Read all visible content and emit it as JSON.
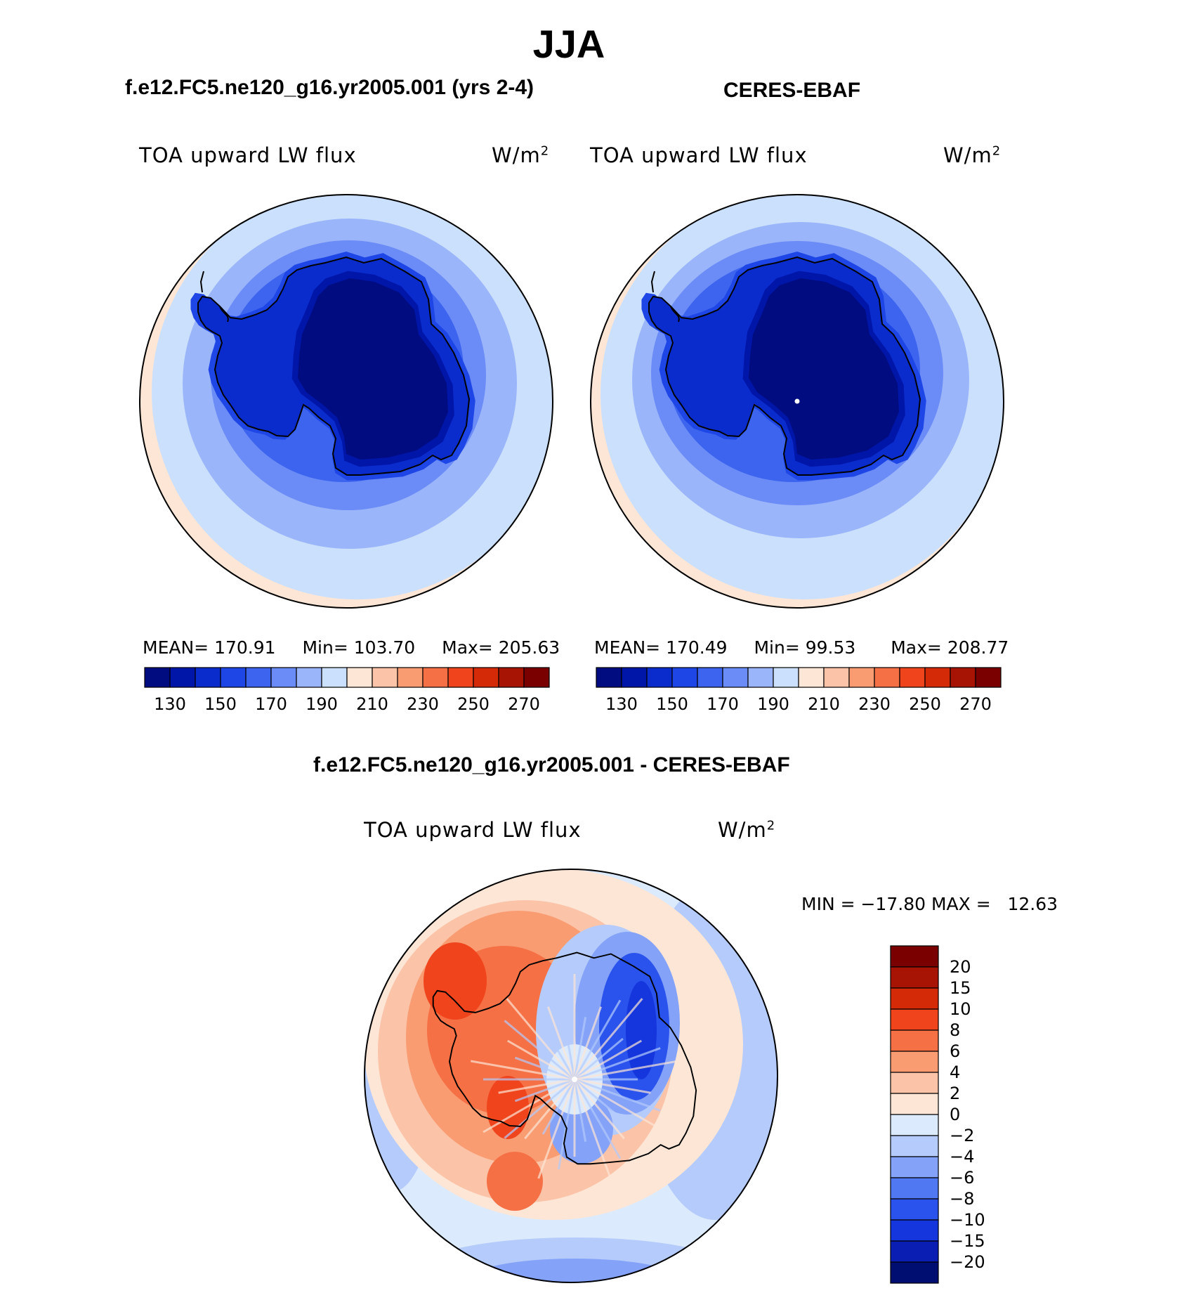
{
  "figure": {
    "title": "JJA"
  },
  "chart_data": [
    {
      "type": "heatmap",
      "panel": "model",
      "title": "f.e12.FC5.ne120_g16.yr2005.001 (yrs 2-4)",
      "variable": "TOA upward LW flux",
      "units": "W/m",
      "units_exp": "2",
      "projection": "south-polar-stereographic",
      "stats": {
        "mean_label": "MEAN=",
        "mean": "170.91",
        "min_label": "Min=",
        "min": "103.70",
        "max_label": "Max=",
        "max": "205.63"
      },
      "colorbar": {
        "orientation": "horizontal",
        "levels": [
          130,
          140,
          150,
          160,
          170,
          180,
          190,
          200,
          210,
          220,
          230,
          240,
          250,
          260,
          270
        ],
        "tick_labels": [
          "130",
          "150",
          "170",
          "190",
          "210",
          "230",
          "250",
          "270"
        ],
        "colors": [
          "#000c80",
          "#0016a8",
          "#0a2ccd",
          "#1e46e6",
          "#3c64ee",
          "#6b8cf6",
          "#9bb5fb",
          "#cbe0fd",
          "#fde6d6",
          "#fbc4a8",
          "#f99c72",
          "#f67046",
          "#f0441c",
          "#d42a08",
          "#a81404",
          "#7a0000"
        ]
      }
    },
    {
      "type": "heatmap",
      "panel": "observation",
      "title": "CERES-EBAF",
      "variable": "TOA upward LW flux",
      "units": "W/m",
      "units_exp": "2",
      "projection": "south-polar-stereographic",
      "stats": {
        "mean_label": "MEAN=",
        "mean": "170.49",
        "min_label": "Min=",
        "min": "99.53",
        "max_label": "Max=",
        "max": "208.77"
      },
      "colorbar": {
        "orientation": "horizontal",
        "levels": [
          130,
          140,
          150,
          160,
          170,
          180,
          190,
          200,
          210,
          220,
          230,
          240,
          250,
          260,
          270
        ],
        "tick_labels": [
          "130",
          "150",
          "170",
          "190",
          "210",
          "230",
          "250",
          "270"
        ],
        "colors": [
          "#000c80",
          "#0016a8",
          "#0a2ccd",
          "#1e46e6",
          "#3c64ee",
          "#6b8cf6",
          "#9bb5fb",
          "#cbe0fd",
          "#fde6d6",
          "#fbc4a8",
          "#f99c72",
          "#f67046",
          "#f0441c",
          "#d42a08",
          "#a81404",
          "#7a0000"
        ]
      }
    },
    {
      "type": "heatmap",
      "panel": "difference",
      "title": "f.e12.FC5.ne120_g16.yr2005.001 - CERES-EBAF",
      "variable": "TOA upward LW flux",
      "units": "W/m",
      "units_exp": "2",
      "projection": "south-polar-stereographic",
      "stats": {
        "text": "MIN = −17.80 MAX =   12.63",
        "min": -17.8,
        "max": 12.63
      },
      "colorbar": {
        "orientation": "vertical",
        "levels": [
          -20,
          -15,
          -10,
          -8,
          -6,
          -4,
          -2,
          0,
          2,
          4,
          6,
          8,
          10,
          15,
          20
        ],
        "tick_labels": [
          "20",
          "15",
          "10",
          "8",
          "6",
          "4",
          "2",
          "0",
          "−2",
          "−4",
          "−6",
          "−8",
          "−10",
          "−15",
          "−20"
        ],
        "colors": [
          "#000e72",
          "#0a1eb4",
          "#1436dc",
          "#2a52ec",
          "#5078f2",
          "#84a2f8",
          "#b4cbfc",
          "#dceafd",
          "#fde6d6",
          "#fbc4a8",
          "#f99c72",
          "#f67046",
          "#f0441c",
          "#d42a08",
          "#a81404",
          "#7a0000"
        ]
      }
    }
  ]
}
